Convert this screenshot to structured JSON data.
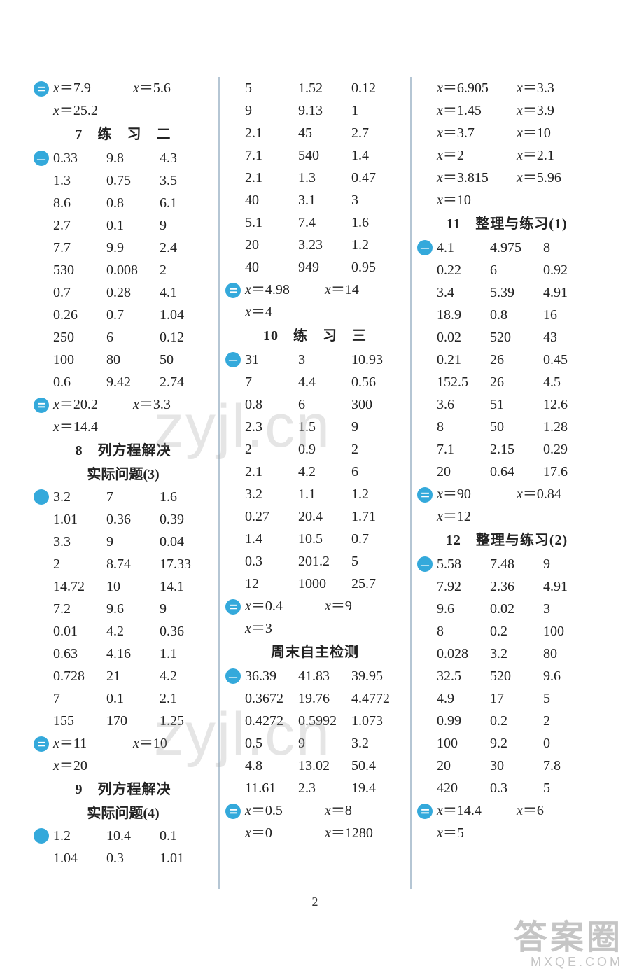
{
  "page_number": "2",
  "watermark_text": "zyjl.cn",
  "corner_wm_big": "答案圈",
  "corner_wm_small": "MXQE.COM",
  "marker_equal_glyph": "⚌",
  "marker_line_glyph": "—",
  "col1": {
    "top_eq1": "x＝7.9",
    "top_eq2": "x＝5.6",
    "top_eq3": "x＝25.2",
    "h1": "7　练　习　二",
    "grid1": [
      [
        "0.33",
        "9.8",
        "4.3"
      ],
      [
        "1.3",
        "0.75",
        "3.5"
      ],
      [
        "8.6",
        "0.8",
        "6.1"
      ],
      [
        "2.7",
        "0.1",
        "9"
      ],
      [
        "7.7",
        "9.9",
        "2.4"
      ],
      [
        "530",
        "0.008",
        "2"
      ],
      [
        "0.7",
        "0.28",
        "4.1"
      ],
      [
        "0.26",
        "0.7",
        "1.04"
      ],
      [
        "250",
        "6",
        "0.12"
      ],
      [
        "100",
        "80",
        "50"
      ],
      [
        "0.6",
        "9.42",
        "2.74"
      ]
    ],
    "eq_set1": {
      "a": "x＝20.2",
      "b": "x＝3.3",
      "c": "x＝14.4"
    },
    "h2a": "8　列方程解决",
    "h2b": "实际问题(3)",
    "grid2": [
      [
        "3.2",
        "7",
        "1.6"
      ],
      [
        "1.01",
        "0.36",
        "0.39"
      ],
      [
        "3.3",
        "9",
        "0.04"
      ],
      [
        "2",
        "8.74",
        "17.33"
      ],
      [
        "14.72",
        "10",
        "14.1"
      ],
      [
        "7.2",
        "9.6",
        "9"
      ],
      [
        "0.01",
        "4.2",
        "0.36"
      ],
      [
        "0.63",
        "4.16",
        "1.1"
      ],
      [
        "0.728",
        "21",
        "4.2"
      ],
      [
        "7",
        "0.1",
        "2.1"
      ],
      [
        "155",
        "170",
        "1.25"
      ]
    ],
    "eq_set2": {
      "a": "x＝11",
      "b": "x＝10",
      "c": "x＝20"
    },
    "h3a": "9　列方程解决",
    "h3b": "实际问题(4)",
    "grid3": [
      [
        "1.2",
        "10.4",
        "0.1"
      ],
      [
        "1.04",
        "0.3",
        "1.01"
      ]
    ]
  },
  "col2": {
    "grid1": [
      [
        "5",
        "1.52",
        "0.12"
      ],
      [
        "9",
        "9.13",
        "1"
      ],
      [
        "2.1",
        "45",
        "2.7"
      ],
      [
        "7.1",
        "540",
        "1.4"
      ],
      [
        "2.1",
        "1.3",
        "0.47"
      ],
      [
        "40",
        "3.1",
        "3"
      ],
      [
        "5.1",
        "7.4",
        "1.6"
      ],
      [
        "20",
        "3.23",
        "1.2"
      ],
      [
        "40",
        "949",
        "0.95"
      ]
    ],
    "eq_set1": {
      "a": "x＝4.98",
      "b": "x＝14",
      "c": "x＝4"
    },
    "h1": "10　练　习　三",
    "grid2": [
      [
        "31",
        "3",
        "10.93"
      ],
      [
        "7",
        "4.4",
        "0.56"
      ],
      [
        "0.8",
        "6",
        "300"
      ],
      [
        "2.3",
        "1.5",
        "9"
      ],
      [
        "2",
        "0.9",
        "2"
      ],
      [
        "2.1",
        "4.2",
        "6"
      ],
      [
        "3.2",
        "1.1",
        "1.2"
      ],
      [
        "0.27",
        "20.4",
        "1.71"
      ],
      [
        "1.4",
        "10.5",
        "0.7"
      ],
      [
        "0.3",
        "201.2",
        "5"
      ],
      [
        "12",
        "1000",
        "25.7"
      ]
    ],
    "eq_set2": {
      "a": "x＝0.4",
      "b": "x＝9",
      "c": "x＝3"
    },
    "h2": "周末自主检测",
    "grid3": [
      [
        "36.39",
        "41.83",
        "39.95"
      ],
      [
        "0.3672",
        "19.76",
        "4.4772"
      ],
      [
        "0.4272",
        "0.5992",
        "1.073"
      ],
      [
        "0.5",
        "9",
        "3.2"
      ],
      [
        "4.8",
        "13.02",
        "50.4"
      ],
      [
        "11.61",
        "2.3",
        "19.4"
      ]
    ],
    "eq_set3": {
      "a": "x＝0.5",
      "b": "x＝8",
      "c": "x＝0",
      "d": "x＝1280"
    }
  },
  "col3": {
    "top_eqs": [
      [
        "x＝6.905",
        "x＝3.3"
      ],
      [
        "x＝1.45",
        "x＝3.9"
      ],
      [
        "x＝3.7",
        "x＝10"
      ],
      [
        "x＝2",
        "x＝2.1"
      ],
      [
        "x＝3.815",
        "x＝5.96"
      ],
      [
        "x＝10",
        ""
      ]
    ],
    "h1": "11　整理与练习(1)",
    "grid1": [
      [
        "4.1",
        "4.975",
        "8"
      ],
      [
        "0.22",
        "6",
        "0.92"
      ],
      [
        "3.4",
        "5.39",
        "4.91"
      ],
      [
        "18.9",
        "0.8",
        "16"
      ],
      [
        "0.02",
        "520",
        "43"
      ],
      [
        "0.21",
        "26",
        "0.45"
      ],
      [
        "152.5",
        "26",
        "4.5"
      ],
      [
        "3.6",
        "51",
        "12.6"
      ],
      [
        "8",
        "50",
        "1.28"
      ],
      [
        "7.1",
        "2.15",
        "0.29"
      ],
      [
        "20",
        "0.64",
        "17.6"
      ]
    ],
    "eq_set1": {
      "a": "x＝90",
      "b": "x＝0.84",
      "c": "x＝12"
    },
    "h2": "12　整理与练习(2)",
    "grid2": [
      [
        "5.58",
        "7.48",
        "9"
      ],
      [
        "7.92",
        "2.36",
        "4.91"
      ],
      [
        "9.6",
        "0.02",
        "3"
      ],
      [
        "8",
        "0.2",
        "100"
      ],
      [
        "0.028",
        "3.2",
        "80"
      ],
      [
        "32.5",
        "520",
        "9.6"
      ],
      [
        "4.9",
        "17",
        "5"
      ],
      [
        "0.99",
        "0.2",
        "2"
      ],
      [
        "100",
        "9.2",
        "0"
      ],
      [
        "20",
        "30",
        "7.8"
      ],
      [
        "420",
        "0.3",
        "5"
      ]
    ],
    "eq_set2": {
      "a": "x＝14.4",
      "b": "x＝6",
      "c": "x＝5"
    }
  }
}
